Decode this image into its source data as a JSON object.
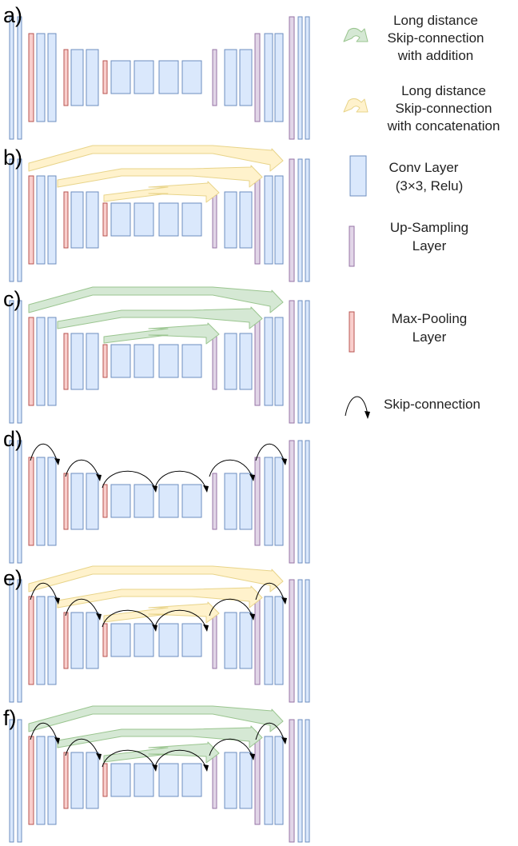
{
  "panels": [
    {
      "label": "a)",
      "concat": false,
      "add": false,
      "skip": false
    },
    {
      "label": "b)",
      "concat": true,
      "add": false,
      "skip": false
    },
    {
      "label": "c)",
      "concat": false,
      "add": true,
      "skip": false
    },
    {
      "label": "d)",
      "concat": false,
      "add": false,
      "skip": true
    },
    {
      "label": "e)",
      "concat": true,
      "add": false,
      "skip": true
    },
    {
      "label": "f)",
      "concat": false,
      "add": true,
      "skip": true
    }
  ],
  "legend": {
    "addition": [
      "Long distance",
      "Skip-connection",
      "with addition"
    ],
    "concatenation": [
      "Long distance",
      "Skip-connection",
      "with concatenation"
    ],
    "conv": [
      "Conv Layer",
      "(3×3,  Relu)"
    ],
    "upsampling": [
      "Up-Sampling",
      "Layer"
    ],
    "maxpool": [
      "Max-Pooling",
      "Layer"
    ],
    "skip": [
      "Skip-connection"
    ]
  },
  "colors": {
    "conv_fill": "#dae8fc",
    "conv_stroke": "#6c8ebf",
    "pool_fill": "#f8cecc",
    "pool_stroke": "#b85450",
    "up_fill": "#e1d5e7",
    "up_stroke": "#9673a6",
    "concat_fill": "#fff2cc",
    "add_fill": "#d5e8d4"
  }
}
